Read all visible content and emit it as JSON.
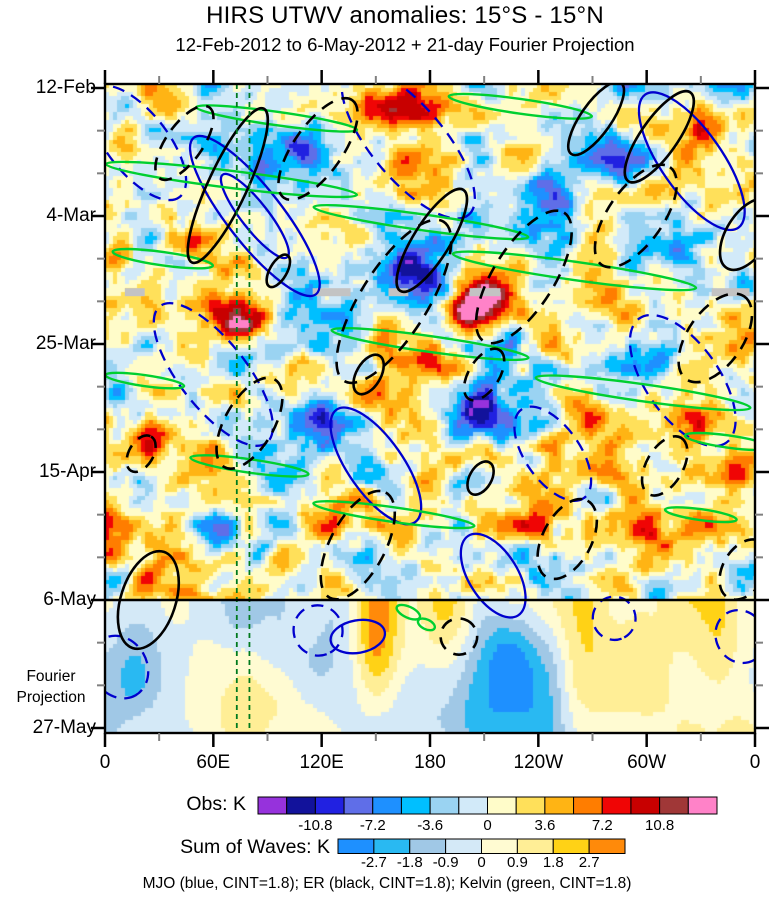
{
  "header": {
    "title": "HIRS UTWV anomalies: 15°S - 15°N",
    "subtitle": "12-Feb-2012 to 6-May-2012 + 21-day Fourier Projection"
  },
  "chart_data": {
    "type": "heatmap",
    "description": "Hovmoller (longitude-time) diagram of HIRS upper-tropospheric water vapor anomalies averaged 15S-15N. Observed anomalies (Obs colorbar) shown from 12-Feb-2012 to 6-May-2012; below the 6-May divider a 21-day Fourier projection of the sum of waves (Sum of Waves colorbar) extends to 27-May. Overlaid wave contours: MJO (blue), ER (black), Kelvin (green), each CINT=1.8 K; solid = positive, dashed = negative.",
    "x_axis": {
      "range_deg": [
        0,
        360
      ],
      "minor_step_deg": 30,
      "ticks": [
        {
          "label": "0",
          "deg": 0
        },
        {
          "label": "60E",
          "deg": 60
        },
        {
          "label": "120E",
          "deg": 120
        },
        {
          "label": "180",
          "deg": 180
        },
        {
          "label": "120W",
          "deg": 240
        },
        {
          "label": "60W",
          "deg": 300
        },
        {
          "label": "0",
          "deg": 360
        }
      ]
    },
    "y_axis": {
      "range_days": [
        0,
        105
      ],
      "minor_step_days": 7,
      "major_step_days": 21,
      "ticks": [
        {
          "label": "12-Feb",
          "day": 0
        },
        {
          "label": "4-Mar",
          "day": 21
        },
        {
          "label": "25-Mar",
          "day": 42
        },
        {
          "label": "15-Apr",
          "day": 63
        },
        {
          "label": "6-May",
          "day": 84
        },
        {
          "label": "27-May",
          "day": 105
        }
      ]
    },
    "projection_label": [
      "Fourier",
      "Projection"
    ],
    "divider": {
      "day": 84,
      "color": "#000000"
    },
    "reference_lines": {
      "color": "#007A1E",
      "degs": [
        73,
        80
      ]
    },
    "missing_data": {
      "color": "#C3C3C3",
      "day": 33.5,
      "segments_deg": [
        [
          11,
          22
        ],
        [
          115,
          136
        ],
        [
          157,
          168
        ],
        [
          202,
          219
        ],
        [
          336,
          357
        ]
      ]
    },
    "obs_colorbar": {
      "label": "Obs: K",
      "interval": 1.8,
      "tick_labels": [
        "-10.8",
        "-7.2",
        "-3.6",
        "0",
        "3.6",
        "7.2",
        "10.8"
      ],
      "colors": [
        "#9632DC",
        "#12129B",
        "#2121E1",
        "#5F6EE8",
        "#1E90FF",
        "#00BFFF",
        "#9AD3F2",
        "#D2EAF9",
        "#FFFCC9",
        "#FFE05A",
        "#FFB414",
        "#FF7D00",
        "#F00505",
        "#C80000",
        "#A03737",
        "#FF82C8"
      ]
    },
    "waves_colorbar": {
      "label": "Sum of Waves: K",
      "interval": 0.9,
      "tick_labels": [
        "-2.7",
        "-1.8",
        "-0.9",
        "0",
        "0.9",
        "1.8",
        "2.7"
      ],
      "colors": [
        "#1E90FF",
        "#29B9F2",
        "#A0C8E6",
        "#D4E9F7",
        "#FFFBD2",
        "#FFEE96",
        "#FFD216",
        "#FF8A0A"
      ]
    },
    "footnote": "MJO (blue, CINT=1.8); ER (black, CINT=1.8); Kelvin (green, CINT=1.8)",
    "contours": {
      "mjo": {
        "name": "MJO",
        "color": "#0000CD",
        "cint": 1.8,
        "ellipses": [
          [
            83,
            21,
            55,
            4.5,
            52,
            0
          ],
          [
            83,
            21,
            29,
            2.2,
            52,
            0
          ],
          [
            325,
            12,
            45,
            5,
            55,
            0
          ],
          [
            150,
            62,
            38,
            4.5,
            55,
            0
          ],
          [
            215,
            80,
            26,
            4,
            58,
            0
          ],
          [
            140,
            90,
            9,
            4.5,
            80,
            0
          ],
          [
            18,
            9,
            38,
            5,
            52,
            1
          ],
          [
            60,
            47,
            48,
            5.5,
            52,
            1
          ],
          [
            168,
            9,
            52,
            6,
            50,
            1
          ],
          [
            320,
            48,
            42,
            6,
            55,
            1
          ],
          [
            118,
            89,
            14,
            4,
            70,
            1
          ],
          [
            282,
            87,
            12,
            3.5,
            70,
            1
          ],
          [
            8,
            95,
            18,
            4.5,
            60,
            1
          ],
          [
            352,
            90,
            15,
            4,
            60,
            1
          ],
          [
            248,
            60,
            30,
            4.5,
            55,
            1
          ]
        ]
      },
      "er": {
        "name": "ER",
        "color": "#000000",
        "cint": 1.8,
        "ellipses": [
          [
            68,
            16,
            47,
            3.2,
            -65,
            0
          ],
          [
            181,
            25,
            33,
            3,
            -58,
            0
          ],
          [
            96,
            30,
            10,
            1.4,
            -60,
            0
          ],
          [
            307,
            8,
            30,
            3,
            -55,
            0
          ],
          [
            272,
            5,
            24,
            2.5,
            -55,
            0
          ],
          [
            146,
            47,
            12,
            2,
            -60,
            0
          ],
          [
            208,
            64,
            10,
            1.8,
            -60,
            0
          ],
          [
            24,
            84,
            28,
            4.5,
            -72,
            0
          ],
          [
            356,
            24,
            22,
            3.5,
            -58,
            0
          ],
          [
            118,
            10,
            33,
            4,
            -55,
            1
          ],
          [
            44,
            9,
            24,
            3,
            -55,
            1
          ],
          [
            160,
            35,
            52,
            5.5,
            -58,
            1
          ],
          [
            232,
            31,
            42,
            5,
            -58,
            1
          ],
          [
            294,
            21,
            33,
            4.5,
            -55,
            1
          ],
          [
            338,
            41,
            28,
            4.5,
            -55,
            1
          ],
          [
            80,
            55,
            28,
            4,
            -60,
            1
          ],
          [
            140,
            75,
            33,
            4.5,
            -62,
            1
          ],
          [
            256,
            74,
            24,
            4,
            -62,
            1
          ],
          [
            310,
            62,
            18,
            3,
            -60,
            1
          ],
          [
            196,
            90,
            10,
            3,
            -72,
            1
          ],
          [
            354,
            79,
            18,
            3.5,
            -60,
            1
          ],
          [
            20,
            60,
            11,
            2,
            -60,
            1
          ],
          [
            210,
            47,
            16,
            2.5,
            -58,
            1
          ]
        ]
      },
      "kelvin": {
        "name": "Kelvin",
        "color": "#00CF30",
        "cint": 1.8,
        "ellipses": [
          [
            95,
            5,
            45,
            1.1,
            8,
            0
          ],
          [
            70,
            15,
            70,
            1.4,
            7,
            0
          ],
          [
            175,
            22,
            60,
            1.3,
            8,
            0
          ],
          [
            260,
            30,
            68,
            1.5,
            8,
            0
          ],
          [
            180,
            42,
            55,
            1.3,
            8,
            0
          ],
          [
            298,
            50,
            60,
            1.4,
            8,
            0
          ],
          [
            80,
            62,
            33,
            1.1,
            8,
            0
          ],
          [
            160,
            70,
            45,
            1.2,
            8,
            0
          ],
          [
            22,
            48,
            22,
            0.9,
            8,
            0
          ],
          [
            345,
            58,
            24,
            1,
            8,
            0
          ],
          [
            32,
            28,
            28,
            1.1,
            8,
            0
          ],
          [
            168,
            86,
            7,
            0.9,
            25,
            0
          ],
          [
            178,
            88,
            5,
            0.8,
            25,
            0
          ],
          [
            230,
            3,
            40,
            1.2,
            8,
            0
          ],
          [
            330,
            70,
            20,
            0.9,
            8,
            0
          ]
        ]
      }
    },
    "obs_highlights": [
      [
        160,
        3,
        9,
        18,
        4
      ],
      [
        330,
        6,
        8,
        16,
        4
      ],
      [
        75,
        38,
        10,
        14,
        4
      ],
      [
        203,
        36,
        14,
        16,
        3.5
      ],
      [
        25,
        58,
        9,
        12,
        4
      ],
      [
        305,
        72,
        8,
        14,
        4
      ],
      [
        95,
        11,
        -8,
        20,
        5
      ],
      [
        170,
        30,
        -8,
        16,
        4
      ],
      [
        213,
        53,
        -9,
        22,
        5
      ],
      [
        285,
        12,
        -7,
        16,
        4
      ],
      [
        352,
        30,
        -6,
        12,
        4
      ],
      [
        45,
        30,
        -5,
        12,
        3
      ],
      [
        120,
        55,
        -6,
        14,
        4
      ],
      [
        252,
        17,
        -7,
        14,
        4
      ],
      [
        350,
        62,
        8,
        10,
        3
      ]
    ],
    "waves_highlights": [
      [
        150,
        94,
        2.2,
        12,
        9
      ],
      [
        222,
        92,
        -1.8,
        14,
        9
      ],
      [
        18,
        97,
        -1.3,
        16,
        9
      ],
      [
        340,
        101,
        -1.6,
        14,
        8
      ],
      [
        95,
        101,
        1.1,
        16,
        8
      ]
    ],
    "noise_seed": 11
  }
}
